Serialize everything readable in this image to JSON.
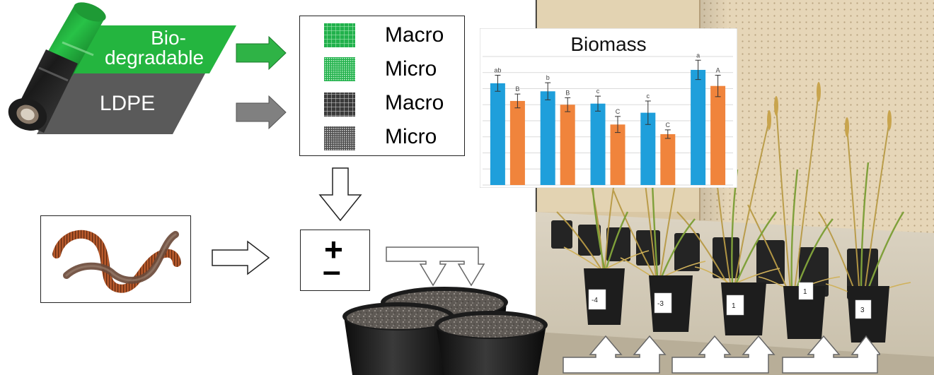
{
  "films": {
    "biodegradable_line1": "Bio-",
    "biodegradable_line2": "degradable",
    "ldpe": "LDPE"
  },
  "legend": {
    "items": [
      {
        "label": "Macro",
        "material": "biodegradable",
        "size": "macro"
      },
      {
        "label": "Micro",
        "material": "biodegradable",
        "size": "micro"
      },
      {
        "label": "Macro",
        "material": "ldpe",
        "size": "macro"
      },
      {
        "label": "Micro",
        "material": "ldpe",
        "size": "micro"
      }
    ]
  },
  "earthworm_toggle": {
    "plus": "+",
    "minus": "–"
  },
  "pot_labels": [
    "-4",
    "-3",
    "1",
    "1",
    "3"
  ],
  "colors": {
    "biodegradable": "#22b14c",
    "ldpe": "#595959",
    "blue_series": "#1f9fdb",
    "orange_series": "#f0843c"
  },
  "chart_data": {
    "type": "bar",
    "title": "Biomass",
    "categories": [
      "",
      "",
      "",
      "",
      ""
    ],
    "series": [
      {
        "color": "#1f9fdb",
        "values": [
          19.0,
          17.5,
          15.2,
          13.5,
          21.5
        ],
        "errors": [
          1.5,
          1.6,
          1.4,
          2.2,
          1.8
        ],
        "labels": [
          "ab",
          "b",
          "c",
          "c",
          "a"
        ]
      },
      {
        "color": "#f0843c",
        "values": [
          15.7,
          15.0,
          11.3,
          9.5,
          18.5
        ],
        "errors": [
          1.3,
          1.3,
          1.5,
          0.8,
          2.0
        ],
        "labels": [
          "B",
          "B",
          "C",
          "C",
          "A"
        ]
      }
    ],
    "ylim": [
      0,
      24
    ],
    "grid": true,
    "legend": "none"
  }
}
